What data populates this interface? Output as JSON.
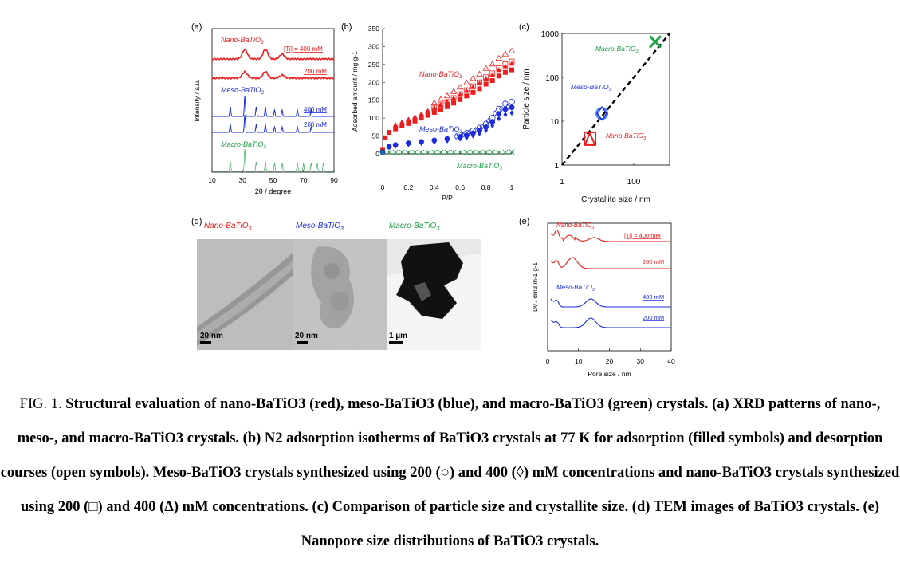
{
  "figure": {
    "panels": {
      "a": "(a)",
      "b": "(b)",
      "c": "(c)",
      "d": "(d)",
      "e": "(e)"
    },
    "labels": {
      "nano": "Nano-BaTiO",
      "meso": "Meso-BaTiO",
      "macro": "Macro-BaTiO",
      "sub3": "3",
      "conc_ti": "[Ti] = 400 mM",
      "c400": "400 mM",
      "c200": "200 mM"
    },
    "tem": {
      "nano": {
        "label": "Nano-BaTiO",
        "scale": "20 nm"
      },
      "meso": {
        "label": "Meso-BaTiO",
        "scale": "20 nm"
      },
      "macro": {
        "label": "Macro-BaTiO",
        "scale": "1 µm"
      }
    },
    "colors": {
      "nano": "#ee1c1c",
      "meso": "#1c2de0",
      "macro": "#1fa046"
    }
  },
  "chart_data": [
    {
      "panel": "a",
      "type": "line",
      "xlabel": "2θ / degree",
      "ylabel": "Intensity / a.u.",
      "xlim": [
        10,
        90
      ],
      "xticks": [
        10,
        30,
        50,
        70,
        90
      ],
      "series": [
        {
          "name": "Nano-BaTiO3 400 mM",
          "peaks": [
            31.5,
            45,
            56
          ]
        },
        {
          "name": "Nano-BaTiO3 200 mM",
          "peaks": [
            31.5,
            45,
            56
          ]
        },
        {
          "name": "Meso-BaTiO3 400 mM",
          "peaks": [
            22,
            31.5,
            39,
            45,
            51,
            56,
            66,
            75
          ]
        },
        {
          "name": "Meso-BaTiO3 200 mM",
          "peaks": [
            22,
            31.5,
            39,
            45,
            51,
            56,
            66,
            75
          ]
        },
        {
          "name": "Macro-BaTiO3",
          "peaks": [
            22,
            31.5,
            39,
            45,
            51,
            56,
            66,
            70,
            75,
            79,
            83
          ]
        }
      ]
    },
    {
      "panel": "b",
      "type": "scatter",
      "xlabel": "P/P0",
      "ylabel": "Adsorbed amount / mg g-1",
      "xlim": [
        0,
        1
      ],
      "ylim": [
        0,
        350
      ],
      "xticks": [
        0,
        0.2,
        0.4,
        0.6,
        0.8,
        1
      ],
      "yticks": [
        0,
        50,
        100,
        150,
        200,
        250,
        300,
        350
      ],
      "series": [
        {
          "name": "Nano-BaTiO3",
          "x": [
            0.0,
            0.02,
            0.05,
            0.1,
            0.15,
            0.2,
            0.25,
            0.3,
            0.35,
            0.4,
            0.45,
            0.5,
            0.55,
            0.6,
            0.65,
            0.7,
            0.75,
            0.8,
            0.85,
            0.9,
            0.95,
            1.0
          ],
          "y": [
            10,
            45,
            60,
            70,
            78,
            85,
            92,
            100,
            108,
            116,
            124,
            132,
            142,
            152,
            162,
            172,
            182,
            195,
            205,
            218,
            228,
            235
          ]
        },
        {
          "name": "Meso-BaTiO3",
          "x": [
            0.0,
            0.05,
            0.1,
            0.2,
            0.3,
            0.4,
            0.5,
            0.6,
            0.65,
            0.7,
            0.75,
            0.8,
            0.85,
            0.9,
            0.95,
            1.0
          ],
          "y": [
            5,
            20,
            25,
            30,
            34,
            38,
            42,
            48,
            52,
            58,
            65,
            75,
            90,
            112,
            125,
            130
          ]
        },
        {
          "name": "Macro-BaTiO3",
          "x": [
            0.0,
            0.05,
            0.1,
            0.15,
            0.2,
            0.25,
            0.3,
            0.35,
            0.4,
            0.45,
            0.5,
            0.55,
            0.6,
            0.65,
            0.7,
            0.75,
            0.8,
            0.85,
            0.9,
            0.95,
            1.0
          ],
          "y": [
            2,
            2,
            2,
            2,
            2,
            2,
            2,
            2,
            2,
            2,
            2,
            2,
            2,
            2,
            2,
            2,
            2,
            2,
            2,
            2,
            3
          ]
        }
      ]
    },
    {
      "panel": "c",
      "type": "scatter",
      "xlabel": "Crystallite size / nm",
      "ylabel": "Particle size / nm",
      "log": true,
      "xlim": [
        1,
        1000
      ],
      "ylim": [
        1,
        1000
      ],
      "xticks": [
        1,
        100
      ],
      "yticks": [
        1,
        10,
        100,
        1000
      ],
      "series": [
        {
          "name": "Nano-BaTiO3",
          "x": [
            6
          ],
          "y": [
            4
          ]
        },
        {
          "name": "Meso-BaTiO3",
          "x": [
            13
          ],
          "y": [
            15
          ]
        },
        {
          "name": "Macro-BaTiO3",
          "x": [
            400
          ],
          "y": [
            650
          ]
        }
      ]
    },
    {
      "panel": "e",
      "type": "line",
      "xlabel": "Pore size / nm",
      "ylabel": "Dv / dm3 m-1 g-1",
      "xlim": [
        0,
        40
      ],
      "xticks": [
        0,
        10,
        20,
        30,
        40
      ],
      "series": [
        {
          "name": "Nano-BaTiO3 400 mM",
          "peaks": [
            3,
            7,
            15
          ]
        },
        {
          "name": "Nano-BaTiO3 200 mM",
          "peaks": [
            3,
            8
          ]
        },
        {
          "name": "Meso-BaTiO3 400 mM",
          "peaks": [
            3,
            14
          ]
        },
        {
          "name": "Meso-BaTiO3 200 mM",
          "peaks": [
            3,
            14
          ]
        }
      ]
    }
  ],
  "caption": {
    "lead": "FIG. 1.",
    "body": "Structural evaluation of nano-BaTiO3 (red), meso-BaTiO3 (blue), and macro-BaTiO3 (green) crystals. (a) XRD patterns of nano-, meso-, and macro-BaTiO3 crystals. (b) N2 adsorption isotherms of BaTiO3 crystals at 77 K for adsorption (filled symbols) and desorption courses (open symbols). Meso-BaTiO3 crystals synthesized using 200 (○) and 400 (◊) mM concentrations and nano-BaTiO3 crystals synthesized using 200 (□) and 400 (Δ) mM concentrations. (c) Comparison of particle size and crystallite size. (d) TEM images of BaTiO3 crystals. (e) Nanopore size distributions of BaTiO3 crystals."
  }
}
